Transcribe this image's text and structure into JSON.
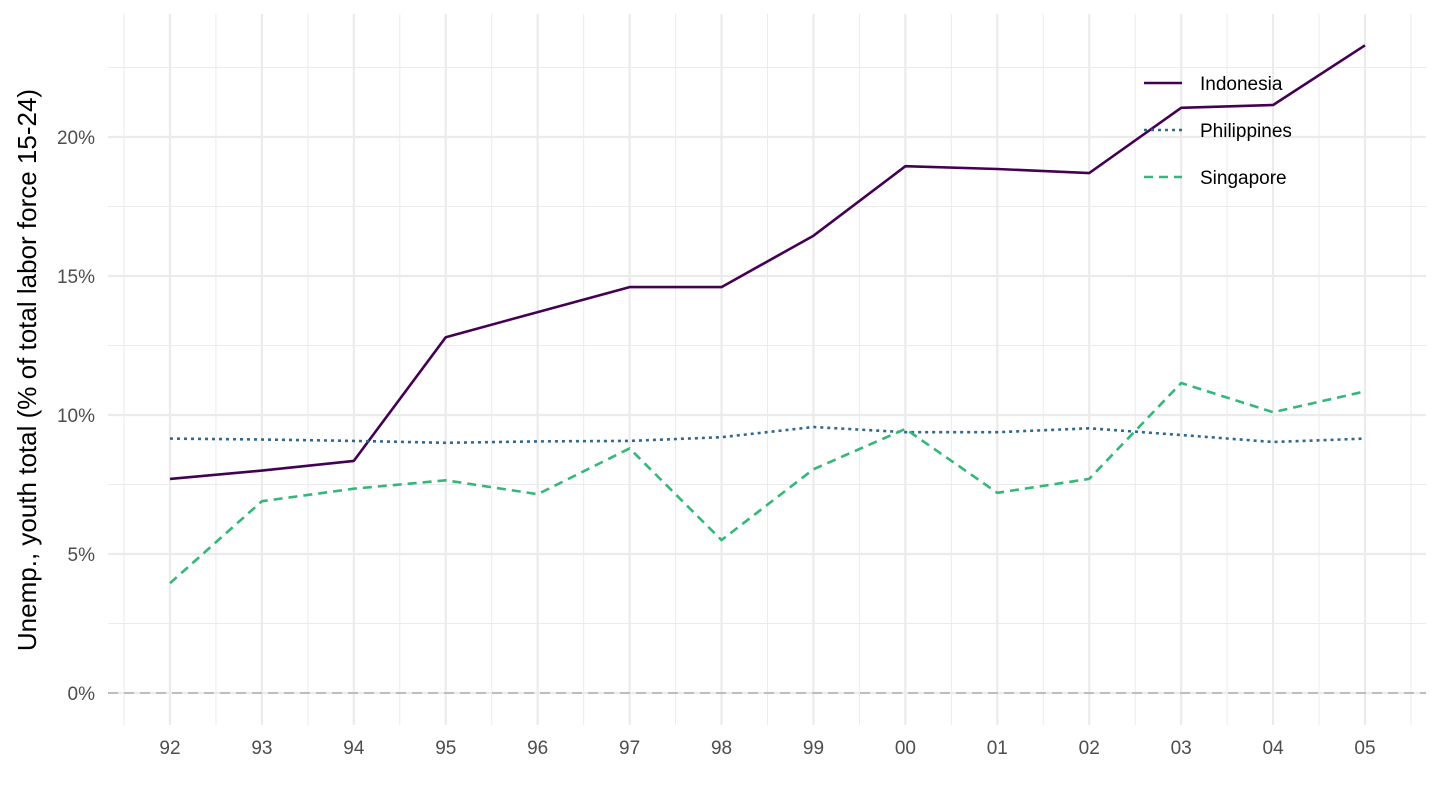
{
  "chart_data": {
    "type": "line",
    "title": "",
    "xlabel": "",
    "ylabel": "Unemp., youth total (% of total labor force 15-24)",
    "categories": [
      "92",
      "93",
      "94",
      "95",
      "96",
      "97",
      "98",
      "99",
      "00",
      "01",
      "02",
      "03",
      "04",
      "05"
    ],
    "yticks": [
      "0%",
      "5%",
      "10%",
      "15%",
      "20%"
    ],
    "ylim": [
      -1,
      24
    ],
    "grid": true,
    "reference_line": 0,
    "legend_position": "top-right",
    "series": [
      {
        "name": "Indonesia",
        "color": "#440154",
        "dash": "solid",
        "values": [
          7.7,
          8.0,
          8.35,
          12.8,
          13.7,
          14.6,
          14.6,
          16.45,
          18.95,
          18.85,
          18.7,
          21.05,
          21.15,
          23.3
        ]
      },
      {
        "name": "Philippines",
        "color": "#31688e",
        "dash": "dotted",
        "values": [
          9.15,
          9.12,
          9.07,
          9.0,
          9.05,
          9.07,
          9.2,
          9.57,
          9.38,
          9.38,
          9.52,
          9.28,
          9.03,
          9.15
        ]
      },
      {
        "name": "Singapore",
        "color": "#35b779",
        "dash": "dashed",
        "values": [
          3.95,
          6.9,
          7.35,
          7.65,
          7.15,
          8.8,
          5.5,
          8.05,
          9.5,
          7.2,
          7.7,
          11.15,
          10.1,
          10.85
        ]
      }
    ]
  }
}
